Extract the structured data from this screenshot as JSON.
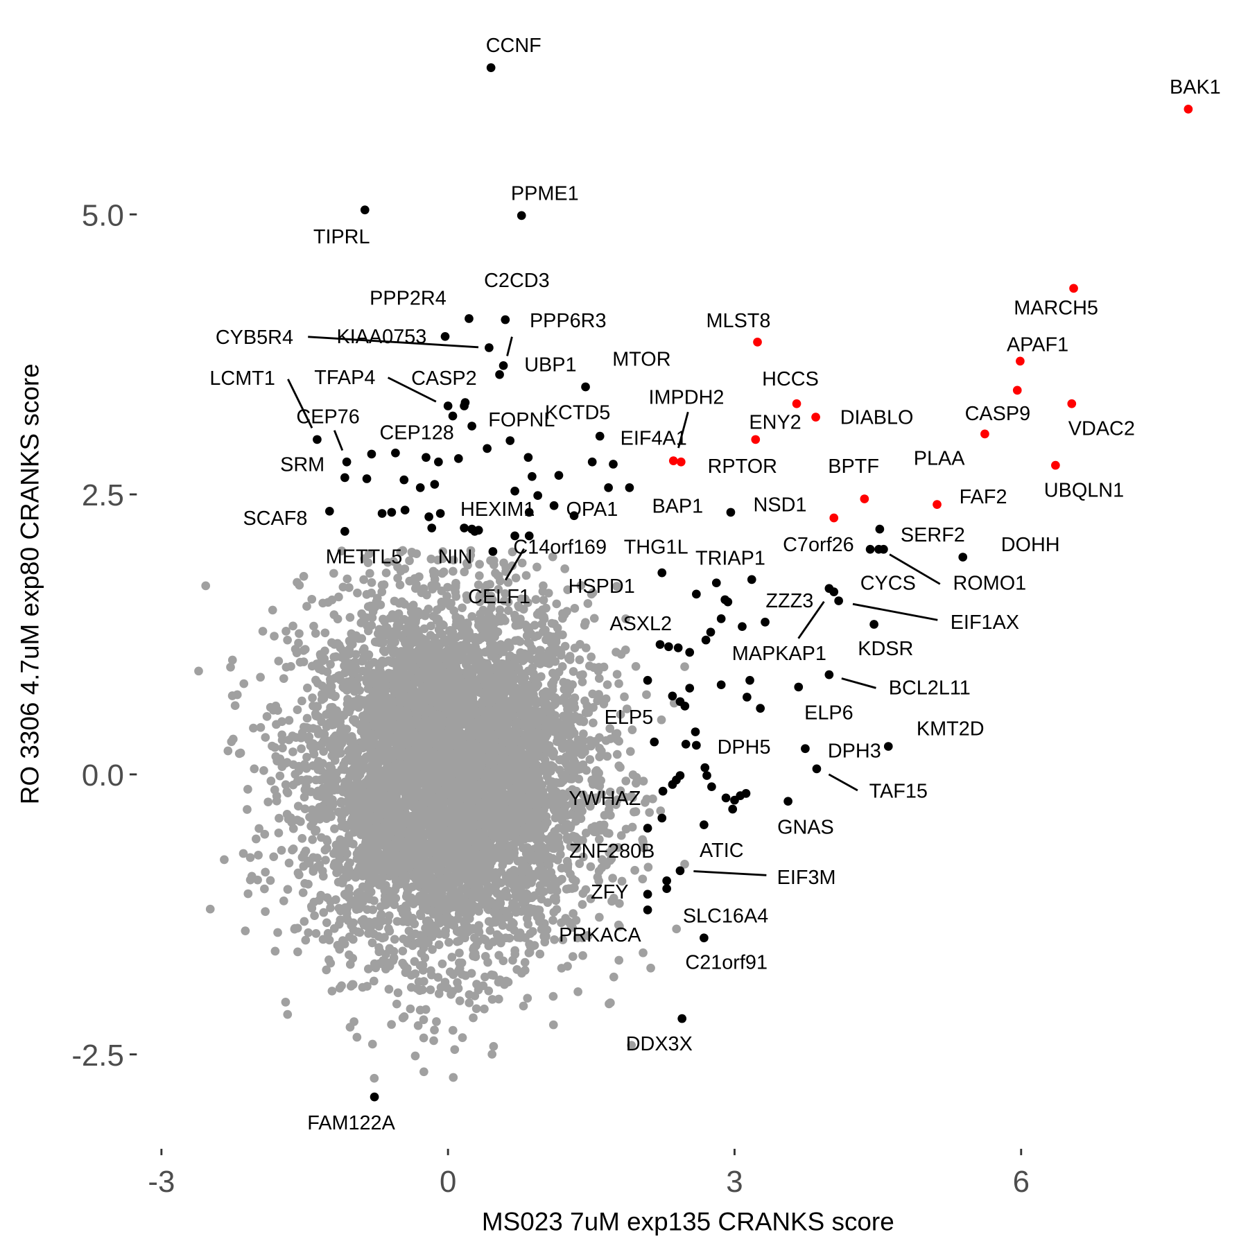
{
  "chart_data": {
    "type": "scatter",
    "title": "",
    "xlabel": "MS023 7uM exp135 CRANKS score",
    "ylabel": "RO 3306 4.7uM exp80 CRANKS score",
    "xlim": [
      -3.0,
      8.0
    ],
    "ylim": [
      -3.3,
      6.6
    ],
    "x_ticks": [
      {
        "value": -3,
        "label": "-3"
      },
      {
        "value": 0,
        "label": "0"
      },
      {
        "value": 3,
        "label": "3"
      },
      {
        "value": 6,
        "label": "6"
      }
    ],
    "y_ticks": [
      {
        "value": -2.5,
        "label": "-2.5"
      },
      {
        "value": 0,
        "label": "0.0"
      },
      {
        "value": 2.5,
        "label": "2.5"
      },
      {
        "value": 5,
        "label": "5.0"
      }
    ],
    "grid": false,
    "colors": {
      "background_genes": "#a0a0a0",
      "hit": "#000000",
      "apoptosis_hit": "#ff0000"
    },
    "background_cloud": {
      "center": [
        0,
        0
      ],
      "sd": [
        0.75,
        0.8
      ],
      "note_color": "background_genes"
    },
    "labeled_points": [
      {
        "label": "CCNF",
        "x": 0.45,
        "y": 6.31,
        "group": "hit"
      },
      {
        "label": "BAK1",
        "x": 7.75,
        "y": 5.94,
        "group": "apoptosis_hit"
      },
      {
        "label": "TIPRL",
        "x": -0.87,
        "y": 5.04,
        "group": "hit"
      },
      {
        "label": "PPME1",
        "x": 0.77,
        "y": 4.99,
        "group": "hit"
      },
      {
        "label": "MARCH5",
        "x": 6.55,
        "y": 4.34,
        "group": "apoptosis_hit"
      },
      {
        "label": "PPP2R4",
        "x": 0.22,
        "y": 4.07,
        "group": "hit"
      },
      {
        "label": "C2CD3",
        "x": 0.6,
        "y": 4.06,
        "group": "hit"
      },
      {
        "label": "KIAA0753",
        "x": -0.03,
        "y": 3.91,
        "group": "hit"
      },
      {
        "label": "CYB5R4",
        "x": 0.43,
        "y": 3.81,
        "group": "hit"
      },
      {
        "label": "MLST8",
        "x": 3.24,
        "y": 3.86,
        "group": "apoptosis_hit"
      },
      {
        "label": "APAF1",
        "x": 5.99,
        "y": 3.69,
        "group": "apoptosis_hit"
      },
      {
        "label": "PPP6R3",
        "x": 0.58,
        "y": 3.65,
        "group": "hit"
      },
      {
        "label": "UBP1",
        "x": 0.54,
        "y": 3.57,
        "group": "hit"
      },
      {
        "label": "MTOR",
        "x": 1.44,
        "y": 3.46,
        "group": "hit"
      },
      {
        "label": "CASP9",
        "x": 5.96,
        "y": 3.43,
        "group": "apoptosis_hit"
      },
      {
        "label": "VDAC2",
        "x": 6.53,
        "y": 3.31,
        "group": "apoptosis_hit"
      },
      {
        "label": "HCCS",
        "x": 3.65,
        "y": 3.31,
        "group": "apoptosis_hit"
      },
      {
        "label": "TFAP4",
        "x": 0.0,
        "y": 3.29,
        "group": "hit"
      },
      {
        "label": "CASP2",
        "x": 0.18,
        "y": 3.32,
        "group": "hit"
      },
      {
        "label": "DIABLO",
        "x": 3.85,
        "y": 3.19,
        "group": "apoptosis_hit"
      },
      {
        "label": "FOPNL",
        "x": 0.25,
        "y": 3.11,
        "group": "hit"
      },
      {
        "label": "KCTD5",
        "x": 0.65,
        "y": 2.98,
        "group": "hit"
      },
      {
        "label": "PLAA",
        "x": 5.62,
        "y": 3.04,
        "group": "apoptosis_hit"
      },
      {
        "label": "EIF4A1",
        "x": 1.59,
        "y": 3.02,
        "group": "hit"
      },
      {
        "label": "ENY2",
        "x": 3.22,
        "y": 2.99,
        "group": "apoptosis_hit"
      },
      {
        "label": "LCMT1",
        "x": -1.37,
        "y": 2.99,
        "group": "hit"
      },
      {
        "label": "CEP128",
        "x": -0.55,
        "y": 2.87,
        "group": "hit"
      },
      {
        "label": "CEP76",
        "x": -1.06,
        "y": 2.79,
        "group": "hit"
      },
      {
        "label": "IMPDH2",
        "x": 2.36,
        "y": 2.8,
        "group": "apoptosis_hit"
      },
      {
        "label": "RPTOR",
        "x": 2.44,
        "y": 2.79,
        "group": "apoptosis_hit"
      },
      {
        "label": "UBQLN1",
        "x": 6.36,
        "y": 2.76,
        "group": "apoptosis_hit"
      },
      {
        "label": "SRM",
        "x": -1.08,
        "y": 2.65,
        "group": "hit"
      },
      {
        "label": "BPTF",
        "x": 4.36,
        "y": 2.46,
        "group": "apoptosis_hit"
      },
      {
        "label": "FAF2",
        "x": 5.12,
        "y": 2.41,
        "group": "apoptosis_hit"
      },
      {
        "label": "SCAF8",
        "x": -1.24,
        "y": 2.35,
        "group": "hit"
      },
      {
        "label": "NSD1",
        "x": 2.96,
        "y": 2.34,
        "group": "hit"
      },
      {
        "label": "HEXIM1",
        "x": 0.17,
        "y": 2.2,
        "group": "hit"
      },
      {
        "label": "OPA1",
        "x": 1.32,
        "y": 2.31,
        "group": "hit"
      },
      {
        "label": "BAP1",
        "x": 1.9,
        "y": 2.56,
        "group": "hit"
      },
      {
        "label": "C7orf26",
        "x": 4.04,
        "y": 2.29,
        "group": "apoptosis_hit"
      },
      {
        "label": "SERF2",
        "x": 4.52,
        "y": 2.19,
        "group": "hit"
      },
      {
        "label": "METTL5",
        "x": -1.08,
        "y": 2.17,
        "group": "hit"
      },
      {
        "label": "NIN",
        "x": 0.28,
        "y": 2.17,
        "group": "hit"
      },
      {
        "label": "C14orf169",
        "x": 0.7,
        "y": 2.13,
        "group": "hit"
      },
      {
        "label": "THG1L",
        "x": 0.85,
        "y": 2.13,
        "group": "hit"
      },
      {
        "label": "CYCS",
        "x": 4.42,
        "y": 2.01,
        "group": "hit"
      },
      {
        "label": "ROMO1",
        "x": 4.51,
        "y": 2.01,
        "group": "hit"
      },
      {
        "label": "DOHH",
        "x": 5.39,
        "y": 1.94,
        "group": "hit"
      },
      {
        "label": "CELF1",
        "x": 0.47,
        "y": 1.99,
        "group": "hit"
      },
      {
        "label": "TRIAP1",
        "x": 2.24,
        "y": 1.8,
        "group": "hit"
      },
      {
        "label": "HSPD1",
        "x": 2.6,
        "y": 1.61,
        "group": "hit"
      },
      {
        "label": "ZZZ3",
        "x": 3.99,
        "y": 1.66,
        "group": "hit"
      },
      {
        "label": "MAPKAP1",
        "x": 4.04,
        "y": 1.63,
        "group": "hit"
      },
      {
        "label": "EIF1AX",
        "x": 4.09,
        "y": 1.55,
        "group": "hit"
      },
      {
        "label": "ASXL2",
        "x": 2.75,
        "y": 1.27,
        "group": "hit"
      },
      {
        "label": "KDSR",
        "x": 4.46,
        "y": 1.34,
        "group": "hit"
      },
      {
        "label": "BCL2L11",
        "x": 3.99,
        "y": 0.89,
        "group": "hit"
      },
      {
        "label": "ELP6",
        "x": 3.67,
        "y": 0.78,
        "group": "hit"
      },
      {
        "label": "ELP5",
        "x": 2.16,
        "y": 0.29,
        "group": "hit"
      },
      {
        "label": "KMT2D",
        "x": 4.61,
        "y": 0.25,
        "group": "hit"
      },
      {
        "label": "DPH5",
        "x": 2.6,
        "y": 0.26,
        "group": "hit"
      },
      {
        "label": "DPH3",
        "x": 3.74,
        "y": 0.23,
        "group": "hit"
      },
      {
        "label": "TAF15",
        "x": 3.86,
        "y": 0.05,
        "group": "hit"
      },
      {
        "label": "YWHAZ",
        "x": 2.25,
        "y": -0.15,
        "group": "hit"
      },
      {
        "label": "GNAS",
        "x": 3.56,
        "y": -0.24,
        "group": "hit"
      },
      {
        "label": "ZNF280B",
        "x": 2.09,
        "y": -0.48,
        "group": "hit"
      },
      {
        "label": "ATIC",
        "x": 2.68,
        "y": -0.45,
        "group": "hit"
      },
      {
        "label": "EIF3M",
        "x": 2.43,
        "y": -0.86,
        "group": "hit"
      },
      {
        "label": "ZFY",
        "x": 2.09,
        "y": -1.07,
        "group": "hit"
      },
      {
        "label": "SLC16A4",
        "x": 2.29,
        "y": -0.95,
        "group": "hit"
      },
      {
        "label": "PRKACA",
        "x": 2.09,
        "y": -1.21,
        "group": "hit"
      },
      {
        "label": "C21orf91",
        "x": 2.68,
        "y": -1.46,
        "group": "hit"
      },
      {
        "label": "DDX3X",
        "x": 2.45,
        "y": -2.18,
        "group": "hit"
      },
      {
        "label": "FAM122A",
        "x": -0.77,
        "y": -2.88,
        "group": "hit"
      }
    ],
    "unlabeled_hits": [
      [
        0.17,
        3.29
      ],
      [
        0.05,
        3.2
      ],
      [
        0.41,
        2.91
      ],
      [
        0.84,
        2.83
      ],
      [
        1.16,
        2.67
      ],
      [
        1.51,
        2.79
      ],
      [
        1.73,
        2.77
      ],
      [
        1.68,
        2.56
      ],
      [
        -0.8,
        2.86
      ],
      [
        -0.46,
        2.63
      ],
      [
        -0.29,
        2.56
      ],
      [
        -0.14,
        2.59
      ],
      [
        -0.23,
        2.83
      ],
      [
        -0.1,
        2.79
      ],
      [
        0.11,
        2.82
      ],
      [
        -0.85,
        2.64
      ],
      [
        0.7,
        2.53
      ],
      [
        0.88,
        2.66
      ],
      [
        0.94,
        2.49
      ],
      [
        1.11,
        2.4
      ],
      [
        -0.69,
        2.33
      ],
      [
        -0.59,
        2.34
      ],
      [
        -0.45,
        2.36
      ],
      [
        -0.2,
        2.3
      ],
      [
        -0.08,
        2.33
      ],
      [
        -0.17,
        2.2
      ],
      [
        0.25,
        2.19
      ],
      [
        0.32,
        2.18
      ],
      [
        0.85,
        2.34
      ],
      [
        2.81,
        1.71
      ],
      [
        2.9,
        1.56
      ],
      [
        2.93,
        1.54
      ],
      [
        3.18,
        1.74
      ],
      [
        2.86,
        1.39
      ],
      [
        3.08,
        1.32
      ],
      [
        3.32,
        1.36
      ],
      [
        2.7,
        1.2
      ],
      [
        2.22,
        1.16
      ],
      [
        2.31,
        1.14
      ],
      [
        2.41,
        1.13
      ],
      [
        2.53,
        1.09
      ],
      [
        2.09,
        0.84
      ],
      [
        2.35,
        0.7
      ],
      [
        2.43,
        0.65
      ],
      [
        2.48,
        0.61
      ],
      [
        2.53,
        0.77
      ],
      [
        2.86,
        0.8
      ],
      [
        3.16,
        0.84
      ],
      [
        3.13,
        0.69
      ],
      [
        3.27,
        0.59
      ],
      [
        2.49,
        0.27
      ],
      [
        2.59,
        0.38
      ],
      [
        2.69,
        0.06
      ],
      [
        2.71,
        -0.01
      ],
      [
        2.76,
        -0.11
      ],
      [
        2.35,
        -0.09
      ],
      [
        2.39,
        -0.05
      ],
      [
        2.43,
        -0.01
      ],
      [
        2.91,
        -0.21
      ],
      [
        3.0,
        -0.23
      ],
      [
        3.06,
        -0.19
      ],
      [
        3.12,
        -0.17
      ],
      [
        2.98,
        -0.31
      ],
      [
        2.24,
        -0.39
      ],
      [
        2.29,
        -1.02
      ],
      [
        4.56,
        2.01
      ]
    ]
  }
}
